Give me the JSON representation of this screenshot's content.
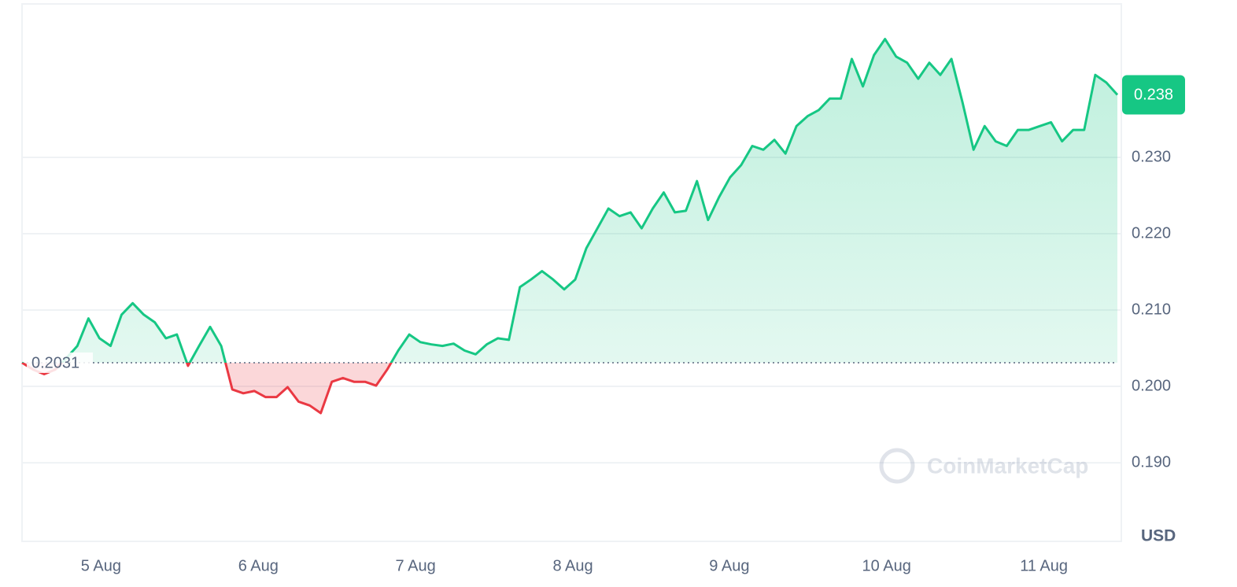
{
  "chart_data": {
    "type": "line",
    "series": [
      {
        "name": "Price",
        "color_up": "#16c784",
        "color_down": "#ea3943",
        "values": [
          0.2031,
          0.2022,
          0.2016,
          0.2022,
          0.2037,
          0.2053,
          0.2089,
          0.2063,
          0.2053,
          0.2094,
          0.2109,
          0.2094,
          0.2084,
          0.2063,
          0.2068,
          0.2027,
          0.2053,
          0.2078,
          0.2053,
          0.1996,
          0.1991,
          0.1994,
          0.1986,
          0.1986,
          0.1999,
          0.198,
          0.1975,
          0.1965,
          0.2006,
          0.2011,
          0.2006,
          0.2006,
          0.2001,
          0.2022,
          0.2047,
          0.2068,
          0.2058,
          0.2055,
          0.2053,
          0.2056,
          0.2047,
          0.2042,
          0.2055,
          0.2063,
          0.2061,
          0.213,
          0.214,
          0.2151,
          0.214,
          0.2127,
          0.214,
          0.2181,
          0.2207,
          0.2233,
          0.2223,
          0.2228,
          0.2207,
          0.2233,
          0.2254,
          0.2228,
          0.223,
          0.2269,
          0.2218,
          0.2248,
          0.2274,
          0.229,
          0.2315,
          0.231,
          0.2323,
          0.2305,
          0.2341,
          0.2354,
          0.2362,
          0.2377,
          0.2377,
          0.2429,
          0.2393,
          0.2434,
          0.2455,
          0.2432,
          0.2424,
          0.2403,
          0.2424,
          0.2408,
          0.2429,
          0.2372,
          0.231,
          0.2341,
          0.2321,
          0.2315,
          0.2336,
          0.2336,
          0.2341,
          0.2346,
          0.2321,
          0.2336,
          0.2336,
          0.2408,
          0.2398,
          0.2382
        ]
      }
    ],
    "baseline": 0.2031,
    "baseline_label": "0.2031",
    "current_label": "0.238",
    "xlim": [
      0,
      99
    ],
    "xticks": [
      {
        "value": 7.14,
        "label": "5 Aug"
      },
      {
        "value": 21.36,
        "label": "6 Aug"
      },
      {
        "value": 35.57,
        "label": "7 Aug"
      },
      {
        "value": 49.79,
        "label": "8 Aug"
      },
      {
        "value": 63.93,
        "label": "9 Aug"
      },
      {
        "value": 78.14,
        "label": "10 Aug"
      },
      {
        "value": 92.36,
        "label": "11 Aug"
      }
    ],
    "ylim": [
      0.1797,
      0.2501
    ],
    "yticks": [
      {
        "value": 0.19,
        "label": "0.190"
      },
      {
        "value": 0.2,
        "label": "0.200"
      },
      {
        "value": 0.21,
        "label": "0.210"
      },
      {
        "value": 0.22,
        "label": "0.220"
      },
      {
        "value": 0.23,
        "label": "0.230"
      }
    ],
    "y_axis_label": "USD",
    "watermark": "CoinMarketCap",
    "grid": true
  }
}
